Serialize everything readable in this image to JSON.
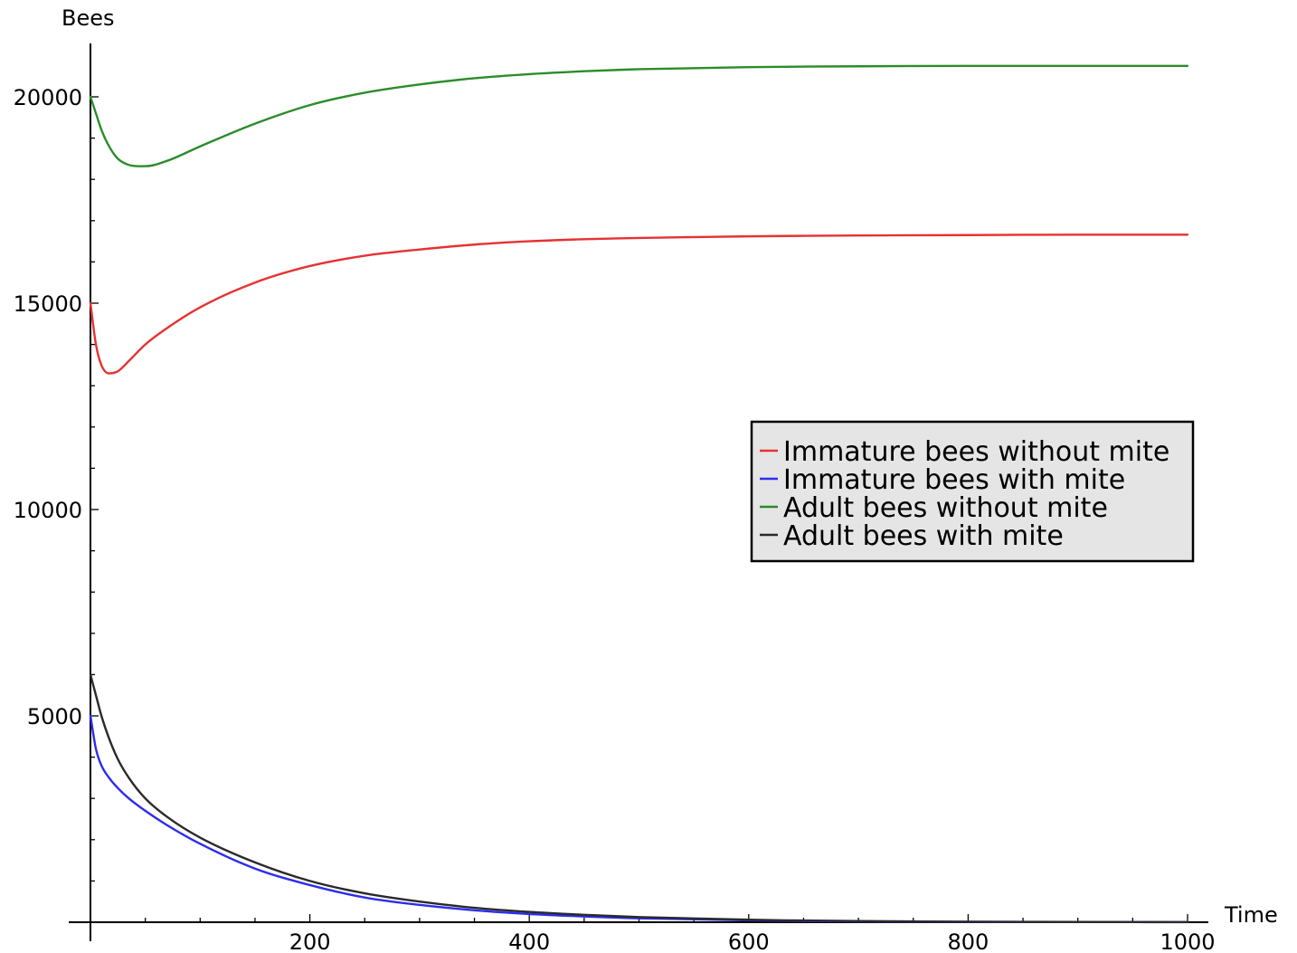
{
  "chart_data": {
    "type": "line",
    "title": "",
    "xlabel": "Time",
    "ylabel": "Bees",
    "xlim": [
      0,
      1000
    ],
    "ylim": [
      0,
      21000
    ],
    "x_ticks": [
      200,
      400,
      600,
      800,
      1000
    ],
    "x_tick_labels": [
      "200",
      "400",
      "600",
      "800",
      "1000"
    ],
    "y_ticks": [
      5000,
      10000,
      15000,
      20000
    ],
    "y_tick_labels": [
      "5000",
      "10000",
      "15000",
      "20000"
    ],
    "grid": false,
    "legend_position": "center-right",
    "x": [
      0,
      5,
      10,
      17,
      25,
      35,
      50,
      70,
      100,
      150,
      200,
      250,
      300,
      350,
      400,
      450,
      500,
      600,
      700,
      800,
      900,
      1000
    ],
    "series": [
      {
        "name": "Immature bees without mite",
        "color": "#e63232",
        "values": [
          15000,
          14000,
          13500,
          13300,
          13350,
          13600,
          14000,
          14400,
          14900,
          15500,
          15900,
          16150,
          16300,
          16420,
          16500,
          16550,
          16580,
          16620,
          16640,
          16650,
          16660,
          16660
        ]
      },
      {
        "name": "Immature bees with mite",
        "color": "#2c2cf0",
        "values": [
          5000,
          4200,
          3800,
          3500,
          3250,
          3000,
          2700,
          2350,
          1900,
          1300,
          900,
          600,
          420,
          290,
          200,
          140,
          95,
          45,
          20,
          10,
          5,
          2
        ]
      },
      {
        "name": "Adult bees without mite",
        "color": "#2b8c2b",
        "values": [
          20000,
          19600,
          19200,
          18800,
          18500,
          18350,
          18320,
          18450,
          18800,
          19350,
          19800,
          20100,
          20300,
          20450,
          20550,
          20620,
          20670,
          20720,
          20740,
          20750,
          20750,
          20750
        ]
      },
      {
        "name": "Adult bees with mite",
        "color": "#2a2a2a",
        "values": [
          6000,
          5500,
          5000,
          4450,
          3950,
          3500,
          3000,
          2550,
          2050,
          1450,
          1000,
          700,
          500,
          350,
          250,
          180,
          125,
          60,
          28,
          13,
          6,
          3
        ]
      }
    ]
  }
}
